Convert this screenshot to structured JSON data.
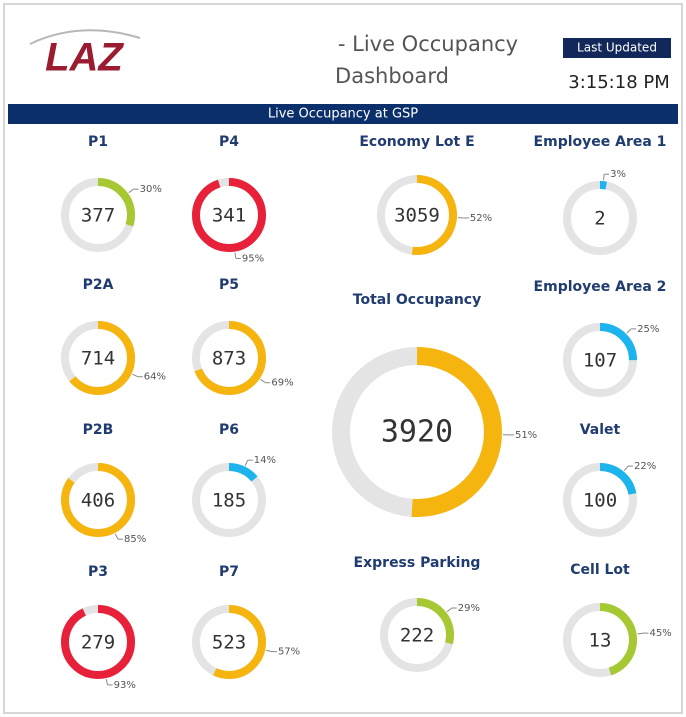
{
  "header": {
    "logo": "LAZ",
    "title_line1": "- Live Occupancy",
    "title_line2": "Dashboard",
    "last_updated_label": "Last Updated",
    "time": "3:15:18 PM"
  },
  "banner": "Live Occupancy at GSP",
  "gauges": [
    {
      "name": "P1",
      "count": 377,
      "percent": 30,
      "percent_label": "30%",
      "color": "#a6c832"
    },
    {
      "name": "P4",
      "count": 341,
      "percent": 95,
      "percent_label": "95%",
      "color": "#e8213a"
    },
    {
      "name": "P2A",
      "count": 714,
      "percent": 64,
      "percent_label": "64%",
      "color": "#f6b40e"
    },
    {
      "name": "P5",
      "count": 873,
      "percent": 69,
      "percent_label": "69%",
      "color": "#f6b40e"
    },
    {
      "name": "P2B",
      "count": 406,
      "percent": 85,
      "percent_label": "85%",
      "color": "#f6b40e"
    },
    {
      "name": "P6",
      "count": 185,
      "percent": 14,
      "percent_label": "14%",
      "color": "#1db3ec"
    },
    {
      "name": "P3",
      "count": 279,
      "percent": 93,
      "percent_label": "93%",
      "color": "#e8213a"
    },
    {
      "name": "P7",
      "count": 523,
      "percent": 57,
      "percent_label": "57%",
      "color": "#f6b40e"
    },
    {
      "name": "Economy Lot E",
      "count": 3059,
      "percent": 52,
      "percent_label": "52%",
      "color": "#f6b40e"
    },
    {
      "name": "Total Occupancy",
      "count": 3920,
      "percent": 51,
      "percent_label": "51%",
      "color": "#f6b40e"
    },
    {
      "name": "Express Parking",
      "count": 222,
      "percent": 29,
      "percent_label": "29%",
      "color": "#a6c832"
    },
    {
      "name": "Employee Area 1",
      "count": 2,
      "percent": 3,
      "percent_label": "3%",
      "color": "#1db3ec"
    },
    {
      "name": "Employee Area 2",
      "count": 107,
      "percent": 25,
      "percent_label": "25%",
      "color": "#1db3ec"
    },
    {
      "name": "Valet",
      "count": 100,
      "percent": 22,
      "percent_label": "22%",
      "color": "#1db3ec"
    },
    {
      "name": "Cell Lot",
      "count": 13,
      "percent": 45,
      "percent_label": "45%",
      "color": "#a6c832"
    }
  ]
}
